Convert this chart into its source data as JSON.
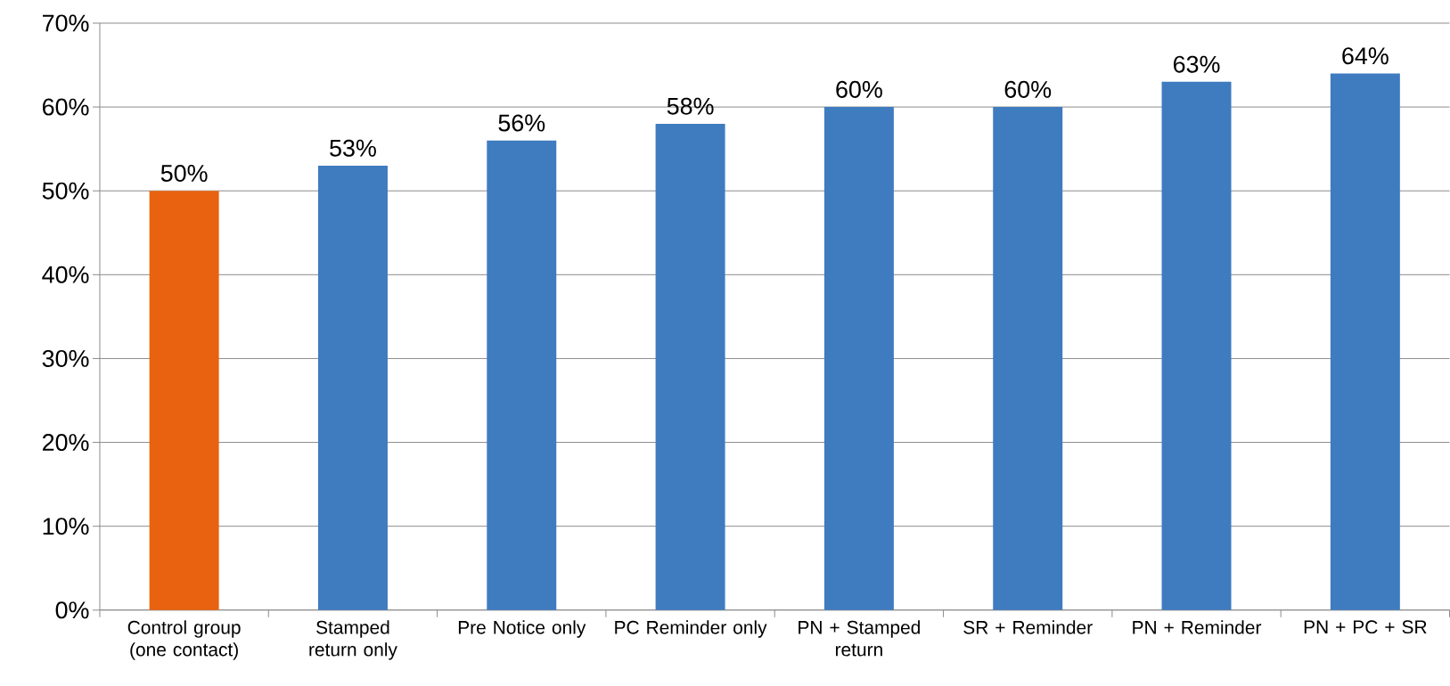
{
  "chart_data": {
    "type": "bar",
    "categories": [
      "Control group (one contact)",
      "Stamped return only",
      "Pre Notice only",
      "PC Reminder only",
      "PN + Stamped return",
      "SR + Reminder",
      "PN + Reminder",
      "PN + PC + SR"
    ],
    "values": [
      50,
      53,
      56,
      58,
      60,
      60,
      63,
      64
    ],
    "value_labels": [
      "50%",
      "53%",
      "56%",
      "58%",
      "60%",
      "60%",
      "63%",
      "64%"
    ],
    "colors": [
      "#e8620f",
      "#3f7bbf",
      "#3f7bbf",
      "#3f7bbf",
      "#3f7bbf",
      "#3f7bbf",
      "#3f7bbf",
      "#3f7bbf"
    ],
    "ylim": [
      0,
      70
    ],
    "yticks": [
      {
        "value": 0,
        "label": "0%"
      },
      {
        "value": 10,
        "label": "10%"
      },
      {
        "value": 20,
        "label": "20%"
      },
      {
        "value": 30,
        "label": "30%"
      },
      {
        "value": 40,
        "label": "40%"
      },
      {
        "value": 50,
        "label": "50%"
      },
      {
        "value": 60,
        "label": "60%"
      },
      {
        "value": 70,
        "label": "70%"
      }
    ],
    "grid": "y"
  }
}
